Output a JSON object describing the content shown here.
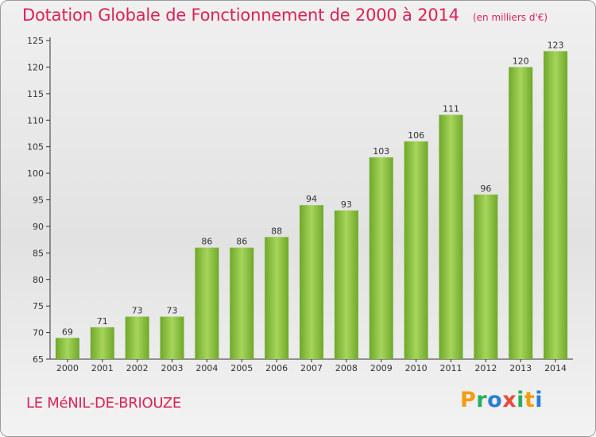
{
  "title": "Dotation Globale de Fonctionnement de 2000 à 2014",
  "subtitle": "(en milliers d'€)",
  "location": "LE MéNIL-DE-BRIOUZE",
  "logo": {
    "text": "Proxiti",
    "colors": [
      "#f39c12",
      "#27ae60",
      "#2a7fd4",
      "#e74c3c",
      "#27ae60",
      "#f39c12",
      "#2a7fd4"
    ]
  },
  "colors": {
    "title": "#dd2255",
    "bar_light": "#a6d55a",
    "bar_dark": "#6fa82a",
    "axis": "#333333"
  },
  "chart_data": {
    "type": "bar",
    "title": "Dotation Globale de Fonctionnement de 2000 à 2014",
    "subtitle": "(en milliers d'€)",
    "xlabel": "",
    "ylabel": "",
    "categories": [
      "2000",
      "2001",
      "2002",
      "2003",
      "2004",
      "2005",
      "2006",
      "2007",
      "2008",
      "2009",
      "2010",
      "2011",
      "2012",
      "2013",
      "2014"
    ],
    "values": [
      69,
      71,
      73,
      73,
      86,
      86,
      88,
      94,
      93,
      103,
      106,
      111,
      96,
      120,
      123
    ],
    "ylim": [
      65,
      125
    ],
    "yticks": [
      65,
      70,
      75,
      80,
      85,
      90,
      95,
      100,
      105,
      110,
      115,
      120,
      125
    ],
    "grid": false,
    "data_labels": true
  }
}
